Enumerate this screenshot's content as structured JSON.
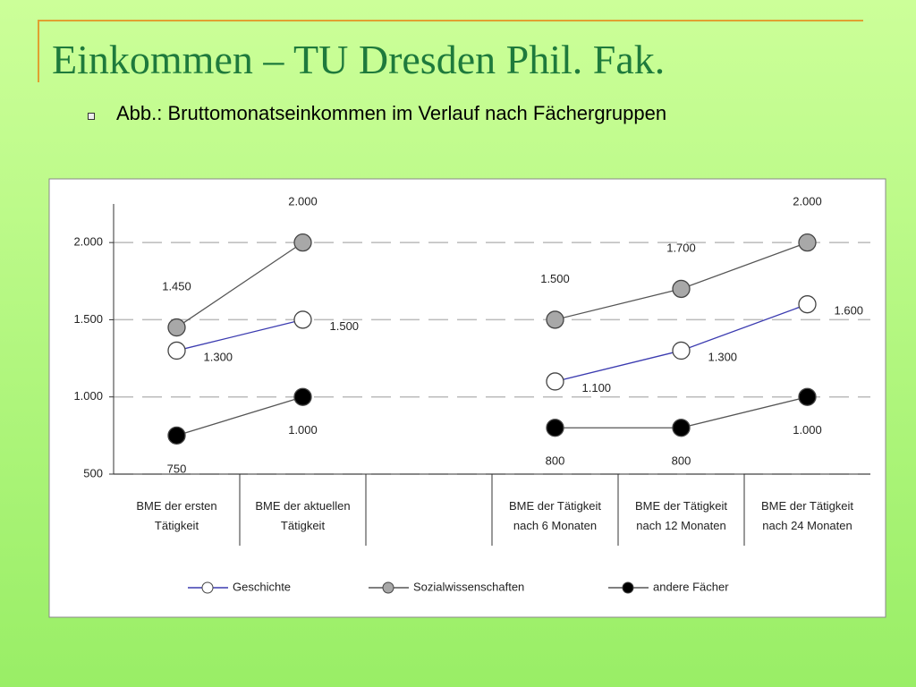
{
  "slide": {
    "title": "Einkommen – TU Dresden Phil. Fak.",
    "bullet": "Abb.: Bruttomonatseinkommen im Verlauf nach Fächergruppen"
  },
  "chart_data": {
    "type": "line",
    "categories": [
      "BME der ersten Tätigkeit",
      "BME der aktuellen Tätigkeit",
      null,
      "BME der Tätigkeit nach 6 Monaten",
      "BME der Tätigkeit nach 12 Monaten",
      "BME der Tätigkeit nach 24 Monaten"
    ],
    "series": [
      {
        "name": "Geschichte",
        "color": "#3b3bb0",
        "marker_color": "#ffffff",
        "values": [
          1300,
          1500,
          null,
          1100,
          1300,
          1600
        ],
        "value_labels": [
          "1.300",
          "1.500",
          null,
          "1.100",
          "1.300",
          "1.600"
        ]
      },
      {
        "name": "Sozialwissenschaften",
        "color": "#555555",
        "marker_color": "#a8a8a8",
        "values": [
          1450,
          2000,
          null,
          1500,
          1700,
          2000
        ],
        "value_labels": [
          "1.450",
          "2.000",
          null,
          "1.500",
          "1.700",
          "2.000"
        ]
      },
      {
        "name": "andere Fächer",
        "color": "#555555",
        "marker_color": "#000000",
        "values": [
          750,
          1000,
          null,
          800,
          800,
          1000
        ],
        "value_labels": [
          "750",
          "1.000",
          null,
          "800",
          "800",
          "1.000"
        ]
      }
    ],
    "ylim": [
      500,
      2250
    ],
    "yticks": [
      500,
      {
        "value": 1000,
        "label": "1.000"
      },
      {
        "value": 1500,
        "label": "1.500"
      },
      {
        "value": 2000,
        "label": "2.000"
      }
    ],
    "grid": true,
    "legend": "bottom"
  }
}
